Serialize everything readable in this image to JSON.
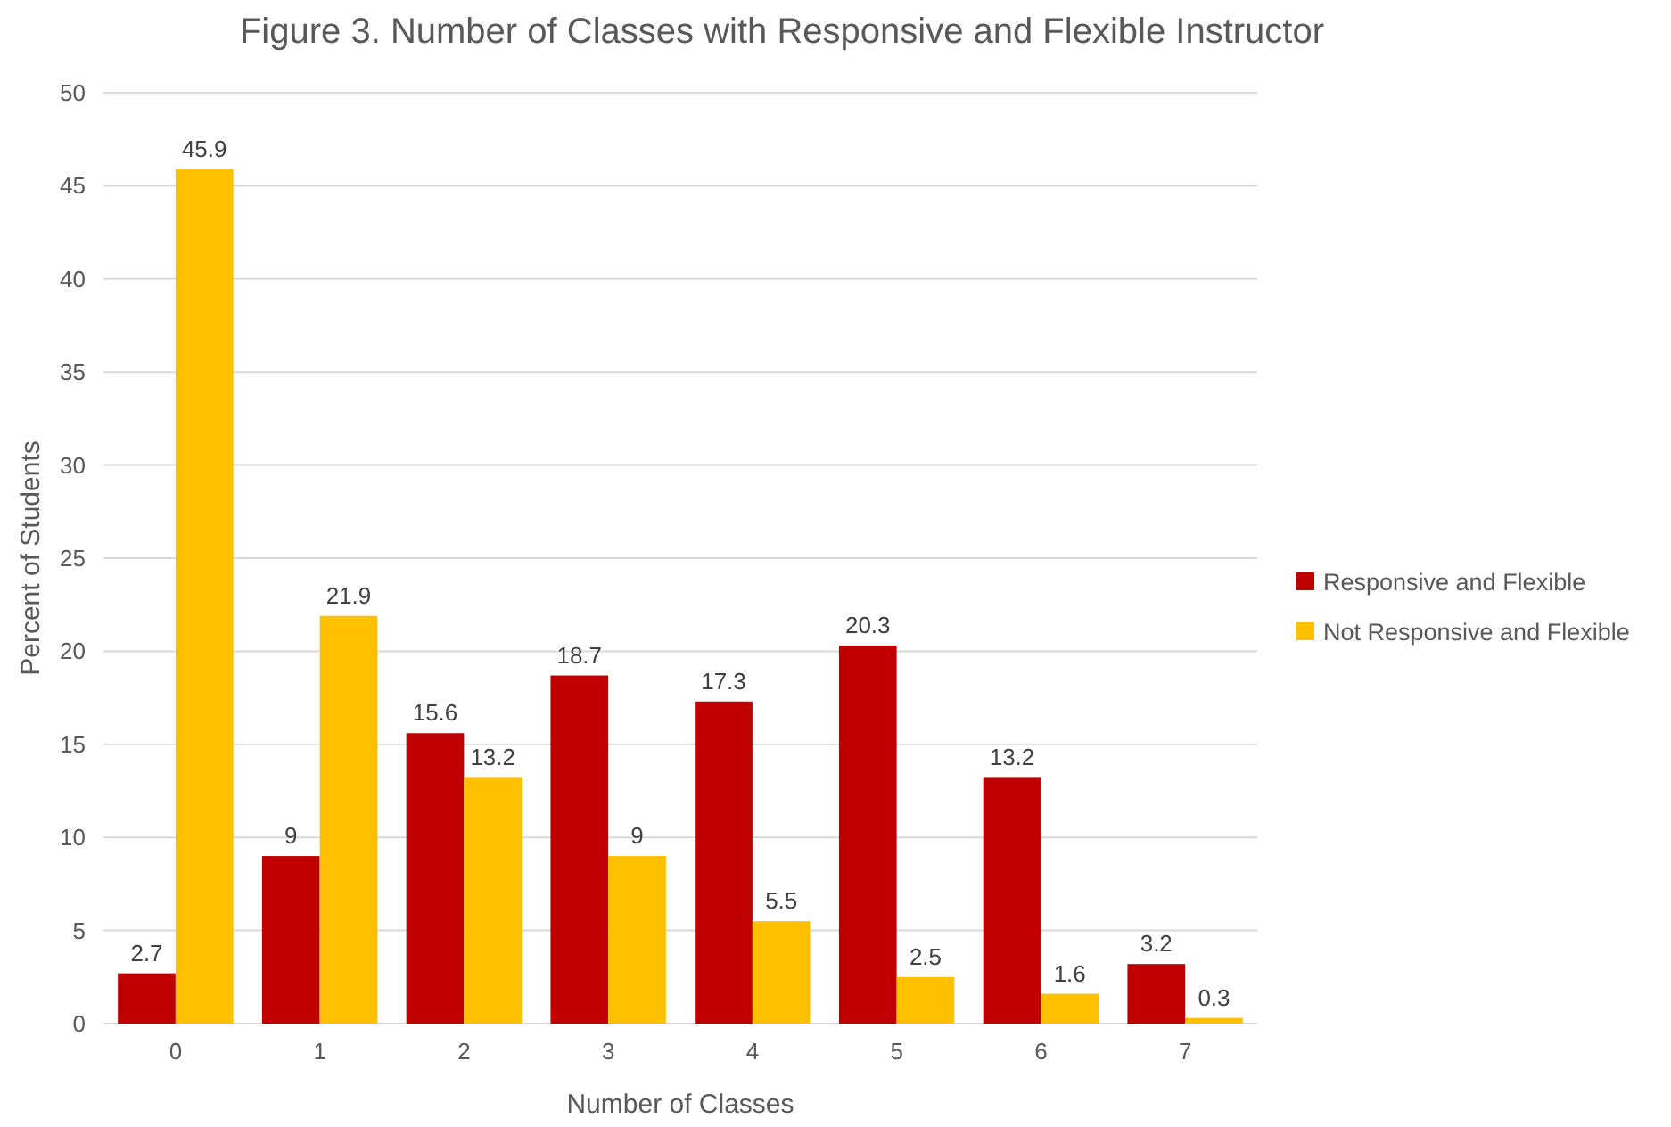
{
  "chart_data": {
    "type": "bar",
    "title": "Figure 3. Number of Classes with Responsive and Flexible Instructor",
    "xlabel": "Number of Classes",
    "ylabel": "Percent of Students",
    "categories": [
      "0",
      "1",
      "2",
      "3",
      "4",
      "5",
      "6",
      "7"
    ],
    "series": [
      {
        "name": "Responsive and Flexible",
        "color": "#c00000",
        "values": [
          2.7,
          9,
          15.6,
          18.7,
          17.3,
          20.3,
          13.2,
          3.2
        ]
      },
      {
        "name": "Not Responsive and Flexible",
        "color": "#ffc000",
        "values": [
          45.9,
          21.9,
          13.2,
          9,
          5.5,
          2.5,
          1.6,
          0.3
        ]
      }
    ],
    "ylim": [
      0,
      50
    ],
    "yticks": [
      0,
      5,
      10,
      15,
      20,
      25,
      30,
      35,
      40,
      45,
      50
    ],
    "grid": "y",
    "legend": "right",
    "data_labels": true
  }
}
